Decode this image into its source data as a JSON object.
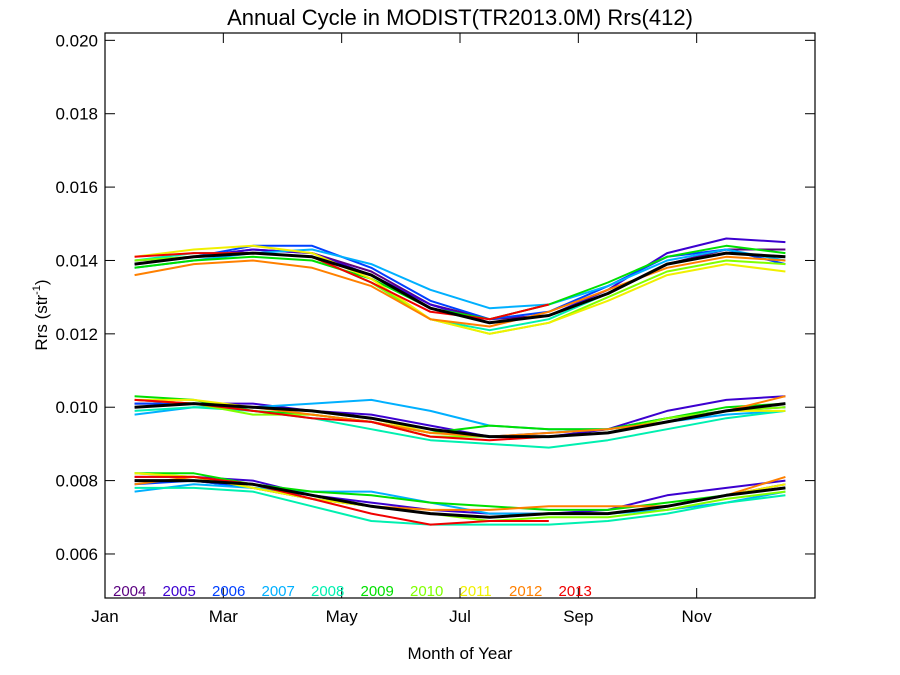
{
  "chart_data": {
    "type": "line",
    "title": "Annual Cycle in MODIST(TR2013.0M) Rrs(412)",
    "xlabel": "Month of Year",
    "ylabel_main": "Rrs (str",
    "ylabel_sup": "-1",
    "ylabel_close": ")",
    "x_range": [
      1,
      13
    ],
    "ylim": [
      0.0048,
      0.0202
    ],
    "x_ticks": [
      {
        "x": 1,
        "label": "Jan"
      },
      {
        "x": 3,
        "label": "Mar"
      },
      {
        "x": 5,
        "label": "May"
      },
      {
        "x": 7,
        "label": "Jul"
      },
      {
        "x": 9,
        "label": "Sep"
      },
      {
        "x": 11,
        "label": "Nov"
      }
    ],
    "y_ticks": [
      {
        "y": 0.006,
        "label": "0.006"
      },
      {
        "y": 0.008,
        "label": "0.008"
      },
      {
        "y": 0.01,
        "label": "0.010"
      },
      {
        "y": 0.012,
        "label": "0.012"
      },
      {
        "y": 0.014,
        "label": "0.014"
      },
      {
        "y": 0.016,
        "label": "0.016"
      },
      {
        "y": 0.018,
        "label": "0.018"
      },
      {
        "y": 0.02,
        "label": "0.020"
      }
    ],
    "grid": false,
    "legend_placement": "bottom-left inline",
    "x": [
      1.5,
      2.5,
      3.5,
      4.5,
      5.5,
      6.5,
      7.5,
      8.5,
      9.5,
      10.5,
      11.5,
      12.5
    ],
    "series": [
      {
        "name": "2004",
        "color": "#5a0080",
        "groups": [
          [
            0.014,
            0.0141,
            0.0143,
            0.0142,
            0.0137,
            0.0128,
            0.0124,
            0.0125,
            0.0131,
            0.0139,
            0.0143,
            0.0143
          ],
          [
            0.0101,
            0.0101,
            0.01,
            0.0099,
            0.0097,
            0.0094,
            0.0092,
            0.0092,
            0.0093,
            0.0096,
            0.0099,
            0.0101
          ],
          [
            0.008,
            0.008,
            0.0078,
            0.0075,
            0.0073,
            0.0071,
            0.007,
            0.0071,
            0.0071,
            0.0073,
            0.0076,
            0.0079
          ]
        ]
      },
      {
        "name": "2005",
        "color": "#3c00d0",
        "groups": [
          [
            0.0139,
            0.0141,
            0.0143,
            0.0142,
            0.0136,
            0.0128,
            0.0123,
            0.0125,
            0.0132,
            0.0142,
            0.0146,
            0.0145
          ],
          [
            0.01,
            0.0101,
            0.0101,
            0.0099,
            0.0098,
            0.0095,
            0.0092,
            0.0092,
            0.0094,
            0.0099,
            0.0102,
            0.0103
          ],
          [
            0.0081,
            0.0081,
            0.008,
            0.0076,
            0.0074,
            0.0072,
            0.0071,
            0.0071,
            0.0072,
            0.0076,
            0.0078,
            0.008
          ]
        ]
      },
      {
        "name": "2006",
        "color": "#0040ff",
        "groups": [
          [
            0.0139,
            0.0141,
            0.0144,
            0.0144,
            0.0138,
            0.0129,
            0.0124,
            0.0126,
            0.0133,
            0.0141,
            0.0143,
            0.0139
          ],
          [
            0.0101,
            0.0101,
            0.01,
            0.0099,
            0.0097,
            0.0094,
            0.0092,
            0.0093,
            0.0094,
            0.0097,
            0.0099,
            0.01
          ],
          [
            0.0079,
            0.008,
            0.0078,
            0.0076,
            0.0073,
            0.0071,
            0.007,
            0.0071,
            0.0071,
            0.0073,
            0.0076,
            0.0078
          ]
        ]
      },
      {
        "name": "2007",
        "color": "#00b0ff",
        "groups": [
          [
            0.0138,
            0.014,
            0.0142,
            0.0143,
            0.0139,
            0.0132,
            0.0127,
            0.0128,
            0.0133,
            0.014,
            0.0143,
            0.014
          ],
          [
            0.0098,
            0.01,
            0.01,
            0.0101,
            0.0102,
            0.0099,
            0.0095,
            0.0094,
            0.0094,
            0.0096,
            0.0098,
            0.0099
          ],
          [
            0.0077,
            0.0079,
            0.0078,
            0.0077,
            0.0077,
            0.0074,
            0.0071,
            0.0071,
            0.0071,
            0.0072,
            0.0074,
            0.0077
          ]
        ]
      },
      {
        "name": "2008",
        "color": "#00f0b0",
        "groups": [
          [
            0.014,
            0.0142,
            0.0142,
            0.0141,
            0.0134,
            0.0124,
            0.0121,
            0.0124,
            0.0131,
            0.0139,
            0.0142,
            0.0141
          ],
          [
            0.0099,
            0.01,
            0.0099,
            0.0097,
            0.0094,
            0.0091,
            0.009,
            0.0089,
            0.0091,
            0.0094,
            0.0097,
            0.0099
          ],
          [
            0.0078,
            0.0078,
            0.0077,
            0.0073,
            0.0069,
            0.0068,
            0.0068,
            0.0068,
            0.0069,
            0.0071,
            0.0074,
            0.0076
          ]
        ]
      },
      {
        "name": "2009",
        "color": "#00e000",
        "groups": [
          [
            0.0138,
            0.014,
            0.0141,
            0.014,
            0.0135,
            0.0127,
            0.0124,
            0.0128,
            0.0134,
            0.0141,
            0.0144,
            0.0142
          ],
          [
            0.0103,
            0.0102,
            0.0099,
            0.0098,
            0.0096,
            0.0093,
            0.0095,
            0.0094,
            0.0094,
            0.0097,
            0.01,
            0.0101
          ],
          [
            0.0082,
            0.0082,
            0.0079,
            0.0077,
            0.0076,
            0.0074,
            0.0073,
            0.0072,
            0.0072,
            0.0074,
            0.0076,
            0.0078
          ]
        ]
      },
      {
        "name": "2010",
        "color": "#80ff00",
        "groups": [
          [
            0.014,
            0.0141,
            0.0142,
            0.0141,
            0.0134,
            0.0124,
            0.012,
            0.0123,
            0.013,
            0.0137,
            0.014,
            0.0139
          ],
          [
            0.0102,
            0.0101,
            0.0098,
            0.0098,
            0.0096,
            0.0092,
            0.0092,
            0.0092,
            0.0093,
            0.0097,
            0.0099,
            0.01
          ],
          [
            0.0082,
            0.0081,
            0.0078,
            0.0075,
            0.0073,
            0.0071,
            0.0069,
            0.007,
            0.007,
            0.0072,
            0.0075,
            0.0077
          ]
        ]
      },
      {
        "name": "2011",
        "color": "#f0f000",
        "groups": [
          [
            0.0141,
            0.0143,
            0.0144,
            0.0142,
            0.0135,
            0.0124,
            0.012,
            0.0123,
            0.0129,
            0.0136,
            0.0139,
            0.0137
          ],
          [
            0.0102,
            0.0102,
            0.01,
            0.0099,
            0.0097,
            0.0093,
            0.0092,
            0.0092,
            0.0093,
            0.0096,
            0.0099,
            0.0099
          ],
          [
            0.0082,
            0.0081,
            0.0078,
            0.0075,
            0.0073,
            0.0071,
            0.007,
            0.0071,
            0.0071,
            0.0073,
            0.0076,
            0.0079
          ]
        ]
      },
      {
        "name": "2012",
        "color": "#ff8000",
        "groups": [
          [
            0.0136,
            0.0139,
            0.014,
            0.0138,
            0.0133,
            0.0124,
            0.0122,
            0.0126,
            0.0132,
            0.0138,
            0.0141,
            0.014
          ],
          [
            0.0102,
            0.0101,
            0.01,
            0.0098,
            0.0096,
            0.0093,
            0.0092,
            0.0093,
            0.0094,
            0.0096,
            0.0099,
            0.0103
          ],
          [
            0.0079,
            0.0081,
            0.0079,
            0.0076,
            0.0073,
            0.0072,
            0.0072,
            0.0073,
            0.0073,
            0.0073,
            0.0076,
            0.0081
          ]
        ]
      },
      {
        "name": "2013",
        "color": "#f00000",
        "groups": [
          [
            0.0141,
            0.0142,
            0.0142,
            0.0141,
            0.0134,
            0.0126,
            0.0124,
            0.0128
          ],
          [
            0.0102,
            0.0101,
            0.0099,
            0.0097,
            0.0096,
            0.0092,
            0.0091,
            0.0092
          ],
          [
            0.0081,
            0.0081,
            0.0079,
            0.0075,
            0.0071,
            0.0068,
            0.0069,
            0.0069
          ]
        ]
      }
    ],
    "mean_line": {
      "color": "#000000",
      "groups": [
        [
          0.0139,
          0.0141,
          0.0142,
          0.0141,
          0.0136,
          0.0127,
          0.0123,
          0.0125,
          0.0131,
          0.0139,
          0.0142,
          0.0141
        ],
        [
          0.01,
          0.0101,
          0.01,
          0.0099,
          0.0097,
          0.0094,
          0.0092,
          0.0092,
          0.0093,
          0.0096,
          0.0099,
          0.0101
        ],
        [
          0.008,
          0.008,
          0.0079,
          0.0076,
          0.0073,
          0.0071,
          0.007,
          0.0071,
          0.0071,
          0.0073,
          0.0076,
          0.0078
        ]
      ]
    },
    "legend": [
      {
        "label": "2004",
        "color": "#5a0080"
      },
      {
        "label": "2005",
        "color": "#3c00d0"
      },
      {
        "label": "2006",
        "color": "#0040ff"
      },
      {
        "label": "2007",
        "color": "#00b0ff"
      },
      {
        "label": "2008",
        "color": "#00f0b0"
      },
      {
        "label": "2009",
        "color": "#00e000"
      },
      {
        "label": "2010",
        "color": "#80ff00"
      },
      {
        "label": "2011",
        "color": "#f0f000"
      },
      {
        "label": "2012",
        "color": "#ff8000"
      },
      {
        "label": "2013",
        "color": "#f00000"
      }
    ]
  }
}
